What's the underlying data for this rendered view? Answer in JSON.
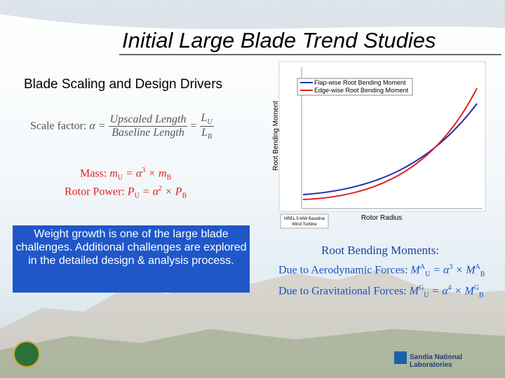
{
  "header": {
    "title": "Initial Large Blade Trend Studies"
  },
  "section": {
    "heading": "Blade Scaling and Design Drivers"
  },
  "formulas": {
    "scale": {
      "label": "Scale factor:",
      "lhs": "α =",
      "numerator": "Upscaled Length",
      "denominator": "Baseline Length",
      "equals": "=",
      "l_num": "L",
      "l_num_sub": "U",
      "l_den": "L",
      "l_den_sub": "B"
    },
    "mass": {
      "label": "Mass:",
      "lhs": "m",
      "lhs_sub": "U",
      "rhs": "= α",
      "exp": "3",
      "rhs2": "× m",
      "rhs2_sub": "B"
    },
    "power": {
      "label": "Rotor Power:",
      "lhs": "P",
      "lhs_sub": "U",
      "rhs": "= α",
      "exp": "2",
      "rhs2": "× P",
      "rhs2_sub": "B"
    }
  },
  "callout": {
    "text": "Weight growth is one of the large blade challenges.  Additional challenges are explored in the detailed design & analysis process."
  },
  "chart": {
    "legend": [
      "Flap-wise Root Bending Moment",
      "Edge-wise Root Bending Moment"
    ],
    "y_label": "Root Bending Moment",
    "x_label": "Rotor Radius",
    "note": [
      "NREL 5-MW Baseline",
      "Wind Turbine"
    ]
  },
  "moments": {
    "heading": "Root Bending Moments:",
    "aero": {
      "label": "Due to Aerodynamic Forces:",
      "lhs": "M",
      "lhs_sup": "A",
      "lhs_sub": "U",
      "rhs": "= α",
      "exp": "3",
      "rhs2": "× M",
      "rhs2_sup": "A",
      "rhs2_sub": "B"
    },
    "grav": {
      "label": "Due to Gravitational Forces:",
      "lhs": "M",
      "lhs_sup": "G",
      "lhs_sub": "U",
      "rhs": "= α",
      "exp": "4",
      "rhs2": "× M",
      "rhs2_sup": "G",
      "rhs2_sub": "B"
    }
  },
  "footer": {
    "organization": "Sandia National Laboratories"
  }
}
